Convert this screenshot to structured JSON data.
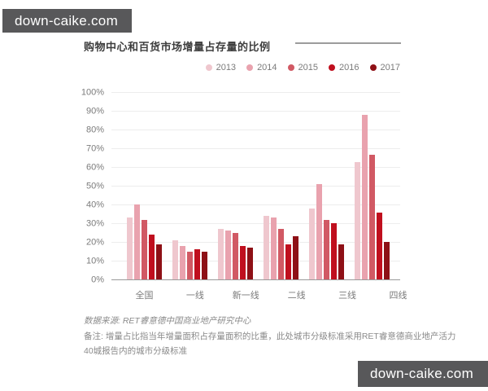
{
  "watermark": {
    "text": "down-caike.com"
  },
  "chart": {
    "title": "购物中心和百货市场增量占存量的比例",
    "source_note": "数据来源: RET睿意德中国商业地产研究中心",
    "note_line1": "备注: 增量占比指当年增量面积占存量面积的比重，此处城市分级标准采用RET睿意德商业地产活力",
    "note_line2": "40城报告内的城市分级标准"
  },
  "chart_data": {
    "type": "bar",
    "title": "购物中心和百货市场增量占存量的比例",
    "categories": [
      "全国",
      "一线",
      "新一线",
      "二线",
      "三线",
      "四线"
    ],
    "series": [
      {
        "name": "2013",
        "color": "#efc7ce",
        "values": [
          33,
          21,
          27,
          34,
          38,
          63
        ]
      },
      {
        "name": "2014",
        "color": "#e9a2ae",
        "values": [
          40,
          18,
          26,
          33,
          51,
          88
        ]
      },
      {
        "name": "2015",
        "color": "#d15964",
        "values": [
          32,
          15,
          25,
          27,
          32,
          67
        ]
      },
      {
        "name": "2016",
        "color": "#c00f1e",
        "values": [
          24,
          16,
          18,
          19,
          30,
          36
        ]
      },
      {
        "name": "2017",
        "color": "#8e1016",
        "values": [
          19,
          15,
          17,
          23,
          19,
          20
        ]
      }
    ],
    "xlabel": "",
    "ylabel": "",
    "ylim": [
      0,
      100
    ],
    "ytick_step": 10,
    "ytick_format": "percent",
    "grid": true,
    "legend_position": "top-right"
  },
  "colors": {
    "watermark_bg": "#58585a",
    "axis": "#9a9a9a",
    "grid": "#ededed",
    "label_gray": "#7b7b7b",
    "title_text": "#3d3d3d",
    "title_rule": "#9c9c9c"
  }
}
